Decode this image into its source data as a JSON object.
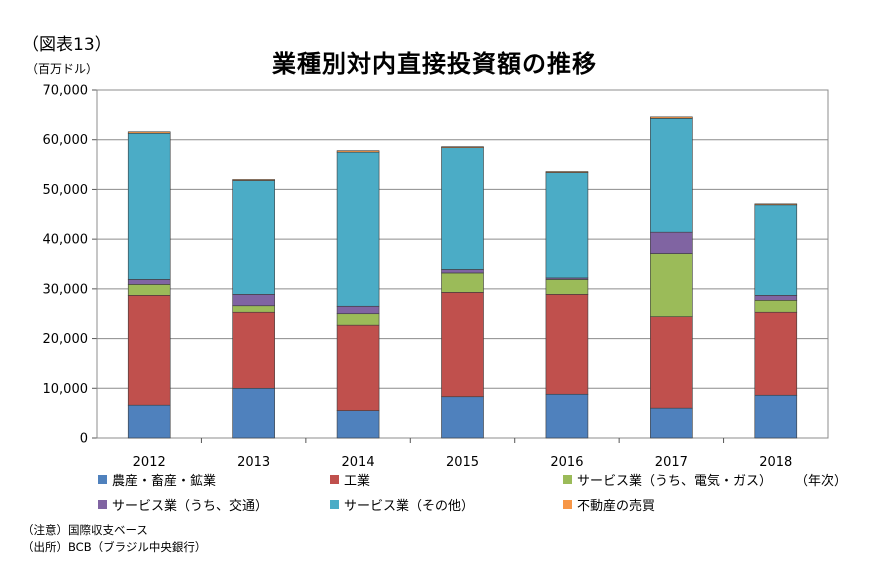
{
  "figure_label": "（図表13）",
  "title": "業種別対内直接投資額の推移",
  "unit_label": "（百万ドル）",
  "x_unit_label": "（年次）",
  "notes": [
    "（注意）国際収支ベース",
    "（出所）BCB（ブラジル中央銀行）"
  ],
  "chart_data": {
    "type": "bar",
    "stacked": true,
    "categories": [
      "2012",
      "2013",
      "2014",
      "2015",
      "2016",
      "2017",
      "2018"
    ],
    "ylim": [
      0,
      70000
    ],
    "yticks": [
      0,
      10000,
      20000,
      30000,
      40000,
      50000,
      60000,
      70000
    ],
    "ytick_labels": [
      "0",
      "10,000",
      "20,000",
      "30,000",
      "40,000",
      "50,000",
      "60,000",
      "70,000"
    ],
    "grid": true,
    "legend_position": "bottom",
    "series": [
      {
        "name": "農産・畜産・鉱業",
        "color": "#4f81bd",
        "values": [
          6600,
          10000,
          5500,
          8300,
          8800,
          6000,
          8600
        ]
      },
      {
        "name": "工業",
        "color": "#c0504d",
        "values": [
          22100,
          15300,
          17200,
          21000,
          20100,
          18400,
          16700
        ]
      },
      {
        "name": "サービス業（うち、電気・ガス）",
        "color": "#9bbb59",
        "values": [
          2200,
          1300,
          2300,
          3900,
          3000,
          12700,
          2400
        ]
      },
      {
        "name": "サービス業（うち、交通）",
        "color": "#8064a2",
        "values": [
          1000,
          2300,
          1500,
          700,
          300,
          4300,
          1000
        ]
      },
      {
        "name": "サービス業（その他）",
        "color": "#4bacc6",
        "values": [
          29400,
          22900,
          31000,
          24500,
          21200,
          22900,
          18200
        ]
      },
      {
        "name": "不動産の売買",
        "color": "#f79646",
        "values": [
          300,
          200,
          300,
          200,
          200,
          300,
          200
        ]
      }
    ]
  }
}
